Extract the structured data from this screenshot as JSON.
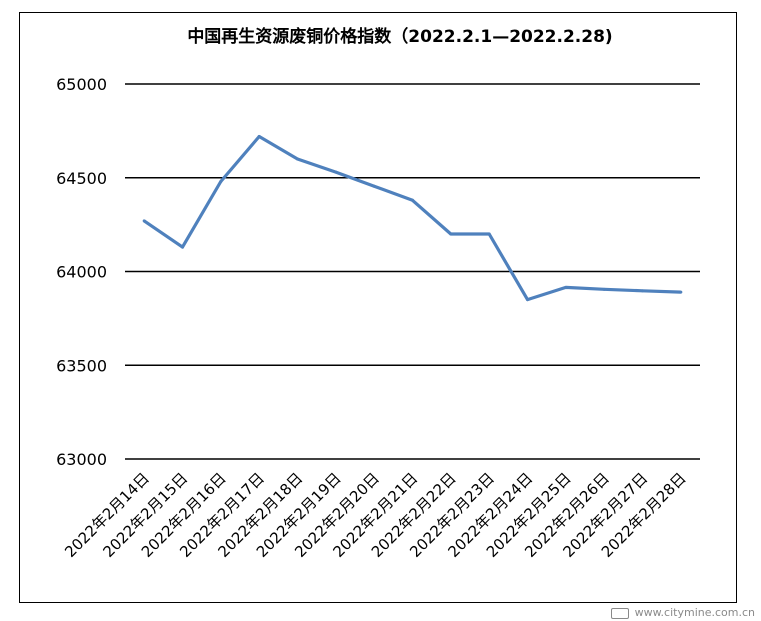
{
  "chart_data": {
    "type": "line",
    "title": "中国再生资源废铜价格指数（2022.2.1—2022.2.28)",
    "xlabel": "",
    "ylabel": "",
    "categories": [
      "2022年2月14日",
      "2022年2月15日",
      "2022年2月16日",
      "2022年2月17日",
      "2022年2月18日",
      "2022年2月19日",
      "2022年2月20日",
      "2022年2月21日",
      "2022年2月22日",
      "2022年2月23日",
      "2022年2月24日",
      "2022年2月25日",
      "2022年2月26日",
      "2022年2月27日",
      "2022年2月28日"
    ],
    "series": [
      {
        "values": [
          64270,
          64130,
          64480,
          64720,
          64600,
          64530,
          64455,
          64380,
          64200,
          64200,
          63850,
          63915,
          63905,
          63897,
          63890
        ]
      }
    ],
    "ylim": [
      63000,
      65000
    ],
    "yticks": [
      63000,
      63500,
      64000,
      64500,
      65000
    ],
    "grid": true,
    "legend": "none",
    "line_color": "#4f81bd",
    "grid_color": "#000000"
  },
  "watermark": "www.citymine.com.cn"
}
